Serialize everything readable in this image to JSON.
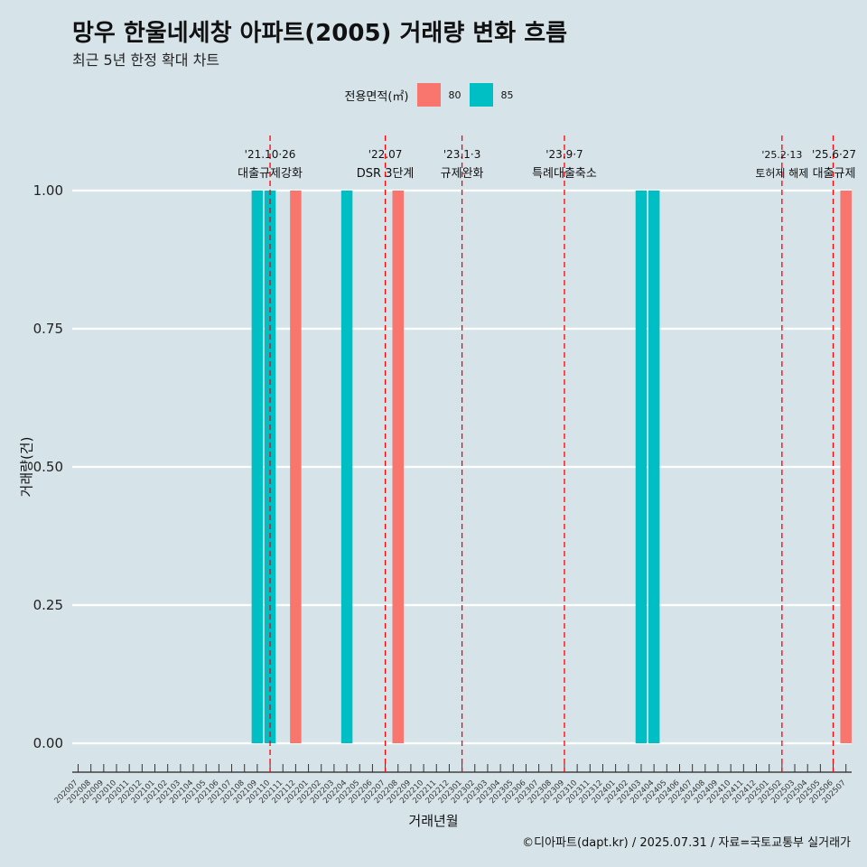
{
  "title": "망우 한울네세창 아파트(2005) 거래량 변화 흐름",
  "subtitle": "최근 5년 한정 확대 차트",
  "legend": {
    "title": "전용면적(㎡)",
    "items": [
      {
        "label": "80",
        "color": "#F8766D"
      },
      {
        "label": "85",
        "color": "#00BFC4"
      }
    ]
  },
  "footer": "©디아파트(dapt.kr) / 2025.07.31 / 자료=국토교통부 실거래가",
  "chart_data": {
    "type": "bar",
    "xlabel": "거래년월",
    "ylabel": "거래량(건)",
    "ylim": [
      0,
      1
    ],
    "yticks": [
      "0.00",
      "0.25",
      "0.50",
      "0.75",
      "1.00"
    ],
    "categories": [
      "202007",
      "202008",
      "202009",
      "202010",
      "202011",
      "202012",
      "202101",
      "202102",
      "202103",
      "202104",
      "202105",
      "202106",
      "202107",
      "202108",
      "202109",
      "202110",
      "202111",
      "202112",
      "202201",
      "202202",
      "202203",
      "202204",
      "202205",
      "202206",
      "202207",
      "202208",
      "202209",
      "202210",
      "202211",
      "202212",
      "202301",
      "202302",
      "202303",
      "202304",
      "202305",
      "202306",
      "202307",
      "202308",
      "202309",
      "202310",
      "202311",
      "202312",
      "202401",
      "202402",
      "202403",
      "202404",
      "202405",
      "202406",
      "202407",
      "202408",
      "202409",
      "202410",
      "202411",
      "202412",
      "202501",
      "202502",
      "202503",
      "202504",
      "202505",
      "202506",
      "202507"
    ],
    "bars": [
      {
        "month": "202109",
        "series": "85",
        "value": 1
      },
      {
        "month": "202110",
        "series": "85",
        "value": 1
      },
      {
        "month": "202112",
        "series": "80",
        "value": 1
      },
      {
        "month": "202204",
        "series": "85",
        "value": 1
      },
      {
        "month": "202208",
        "series": "80",
        "value": 1
      },
      {
        "month": "202403",
        "series": "85",
        "value": 1
      },
      {
        "month": "202404",
        "series": "85",
        "value": 1
      },
      {
        "month": "202507",
        "series": "80",
        "value": 1
      }
    ],
    "events": [
      {
        "month": "202110",
        "date": "'21.10·26",
        "label": "대출규제강화"
      },
      {
        "month": "202207",
        "date": "'22.07",
        "label": "DSR 3단계"
      },
      {
        "month": "202301",
        "date": "'23.1·3",
        "label": "규제완화"
      },
      {
        "month": "202309",
        "date": "'23.9·7",
        "label": "특례대출축소"
      },
      {
        "month": "202502",
        "date": "'25.2·13",
        "label": "토허제 해제"
      },
      {
        "month": "202506",
        "date": "'25.6·27",
        "label": "대출규제"
      }
    ],
    "event_line_color": "#FF0000",
    "grid": true,
    "legend_position": "top"
  }
}
